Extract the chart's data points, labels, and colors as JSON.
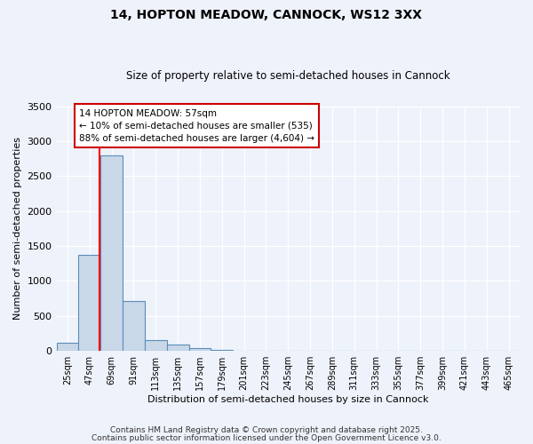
{
  "title1": "14, HOPTON MEADOW, CANNOCK, WS12 3XX",
  "title2": "Size of property relative to semi-detached houses in Cannock",
  "xlabel": "Distribution of semi-detached houses by size in Cannock",
  "ylabel": "Number of semi-detached properties",
  "categories": [
    "25sqm",
    "47sqm",
    "69sqm",
    "91sqm",
    "113sqm",
    "135sqm",
    "157sqm",
    "179sqm",
    "201sqm",
    "223sqm",
    "245sqm",
    "267sqm",
    "289sqm",
    "311sqm",
    "333sqm",
    "355sqm",
    "377sqm",
    "399sqm",
    "421sqm",
    "443sqm",
    "465sqm"
  ],
  "values": [
    120,
    1380,
    2800,
    710,
    160,
    90,
    35,
    20,
    0,
    0,
    0,
    0,
    0,
    0,
    0,
    0,
    0,
    0,
    0,
    0,
    0
  ],
  "bar_color": "#c8d8e8",
  "bar_edge_color": "#5b8db8",
  "red_line_x": 1.45,
  "annotation_text": "14 HOPTON MEADOW: 57sqm\n← 10% of semi-detached houses are smaller (535)\n88% of semi-detached houses are larger (4,604) →",
  "annotation_box_color": "#ffffff",
  "annotation_box_edge": "#cc0000",
  "ylim": [
    0,
    3500
  ],
  "background_color": "#eef2fb",
  "grid_color": "#ffffff",
  "footer1": "Contains HM Land Registry data © Crown copyright and database right 2025.",
  "footer2": "Contains public sector information licensed under the Open Government Licence v3.0."
}
